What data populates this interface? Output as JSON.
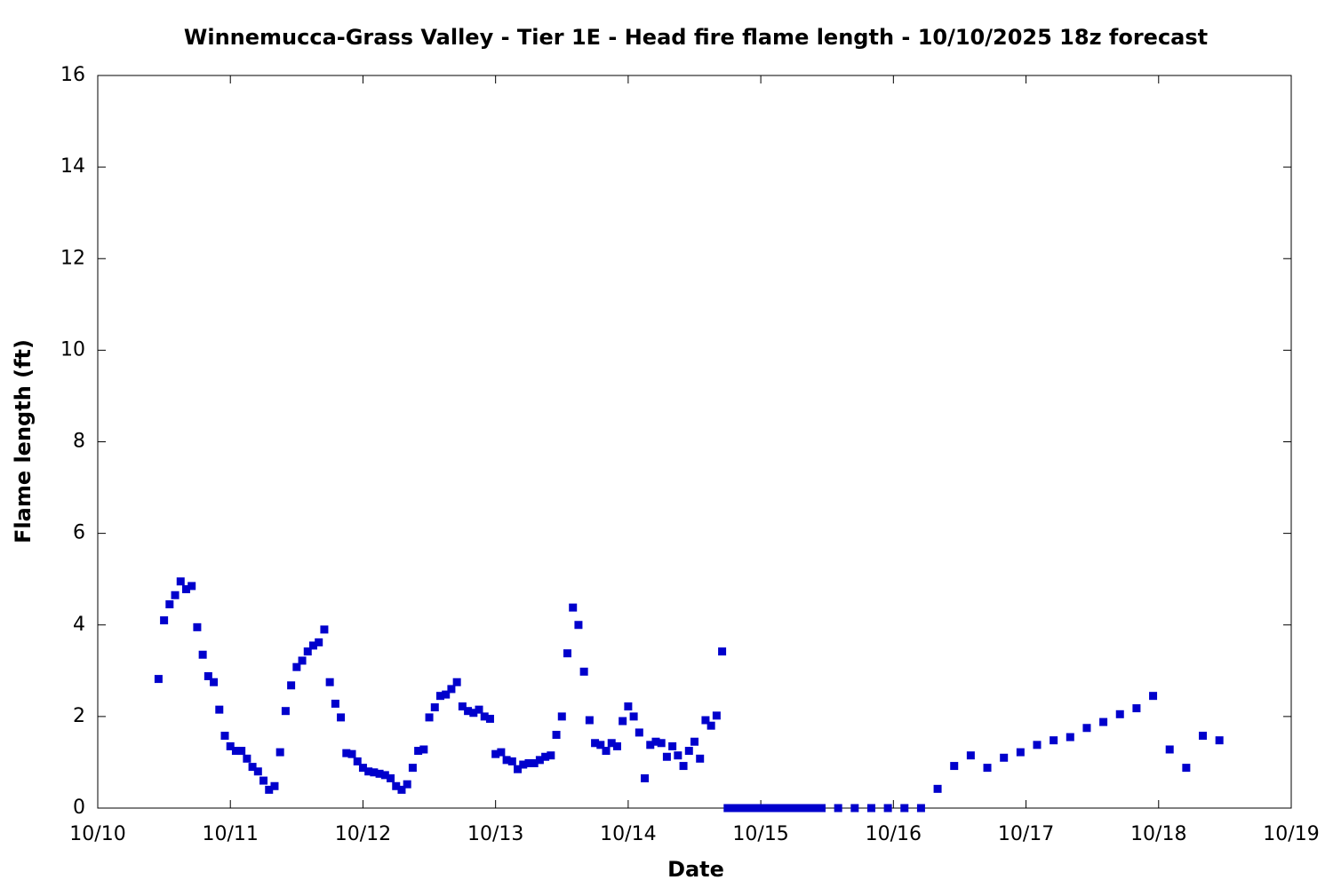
{
  "chart_data": {
    "type": "scatter",
    "title": "Winnemucca-Grass Valley - Tier 1E - Head fire flame length - 10/10/2025 18z forecast",
    "x_label": "Date",
    "y_label": "Flame length (ft)",
    "color": "#0000cc",
    "xlim": [
      0,
      216
    ],
    "xticks": [
      {
        "value": 0,
        "label": "10/10"
      },
      {
        "value": 24,
        "label": "10/11"
      },
      {
        "value": 48,
        "label": "10/12"
      },
      {
        "value": 72,
        "label": "10/13"
      },
      {
        "value": 96,
        "label": "10/14"
      },
      {
        "value": 120,
        "label": "10/15"
      },
      {
        "value": 144,
        "label": "10/16"
      },
      {
        "value": 168,
        "label": "10/17"
      },
      {
        "value": 192,
        "label": "10/18"
      },
      {
        "value": 216,
        "label": "10/19"
      }
    ],
    "ylim": [
      0,
      16
    ],
    "yticks": [
      0,
      2,
      4,
      6,
      8,
      10,
      12,
      14,
      16
    ],
    "x": [
      11,
      12,
      13,
      14,
      15,
      16,
      17,
      18,
      19,
      20,
      21,
      22,
      23,
      24,
      25,
      26,
      27,
      28,
      29,
      30,
      31,
      32,
      33,
      34,
      35,
      36,
      37,
      38,
      39,
      40,
      41,
      42,
      43,
      44,
      45,
      46,
      47,
      48,
      49,
      50,
      51,
      52,
      53,
      54,
      55,
      56,
      57,
      58,
      59,
      60,
      61,
      62,
      63,
      64,
      65,
      66,
      67,
      68,
      69,
      70,
      71,
      72,
      73,
      74,
      75,
      76,
      77,
      78,
      79,
      80,
      81,
      82,
      83,
      84,
      85,
      86,
      87,
      88,
      89,
      90,
      91,
      92,
      93,
      94,
      95,
      96,
      97,
      98,
      99,
      100,
      101,
      102,
      103,
      104,
      105,
      106,
      107,
      108,
      109,
      110,
      111,
      112,
      113,
      114,
      115,
      116,
      117,
      118,
      119,
      120,
      121,
      122,
      123,
      124,
      125,
      126,
      127,
      128,
      129,
      130,
      131,
      134,
      137,
      140,
      143,
      146,
      149,
      152,
      155,
      158,
      161,
      164,
      167,
      170,
      173,
      176,
      179,
      182,
      185,
      188,
      191,
      194,
      197,
      200,
      203
    ],
    "values": [
      2.82,
      4.1,
      4.45,
      4.65,
      4.95,
      4.78,
      4.85,
      3.95,
      3.35,
      2.88,
      2.75,
      2.15,
      1.58,
      1.35,
      1.25,
      1.25,
      1.08,
      0.9,
      0.8,
      0.6,
      0.4,
      0.48,
      1.22,
      2.12,
      2.68,
      3.08,
      3.22,
      3.42,
      3.55,
      3.62,
      3.9,
      2.75,
      2.28,
      1.98,
      1.2,
      1.18,
      1.02,
      0.88,
      0.8,
      0.78,
      0.75,
      0.72,
      0.65,
      0.48,
      0.4,
      0.52,
      0.88,
      1.25,
      1.28,
      1.98,
      2.2,
      2.45,
      2.48,
      2.6,
      2.75,
      2.22,
      2.12,
      2.08,
      2.15,
      2.0,
      1.95,
      1.18,
      1.22,
      1.05,
      1.02,
      0.85,
      0.95,
      0.98,
      0.98,
      1.05,
      1.12,
      1.15,
      1.6,
      2.0,
      3.38,
      4.38,
      4.0,
      2.98,
      1.92,
      1.42,
      1.38,
      1.25,
      1.42,
      1.35,
      1.9,
      2.22,
      2.0,
      1.65,
      0.65,
      1.38,
      1.45,
      1.42,
      1.12,
      1.35,
      1.15,
      0.92,
      1.25,
      1.45,
      1.08,
      1.92,
      1.8,
      2.02,
      3.42,
      0,
      0,
      0,
      0,
      0,
      0,
      0,
      0,
      0,
      0,
      0,
      0,
      0,
      0,
      0,
      0,
      0,
      0,
      0,
      0,
      0,
      0,
      0,
      0,
      0.42,
      0.92,
      1.15,
      0.88,
      1.1,
      1.22,
      1.38,
      1.48,
      1.55,
      1.75,
      1.88,
      2.05,
      2.18,
      2.45,
      1.28,
      0.88,
      1.58,
      1.48
    ]
  }
}
